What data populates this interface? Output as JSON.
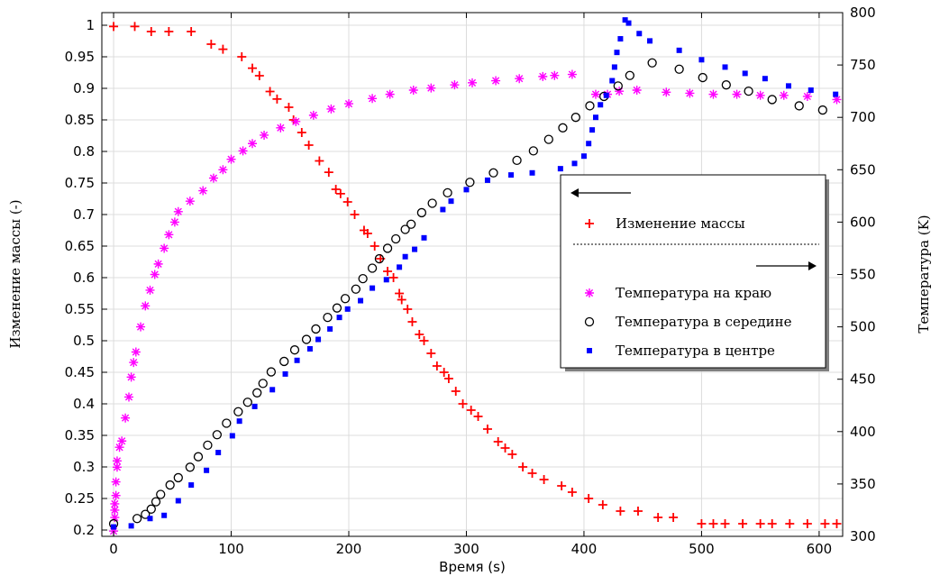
{
  "chart_data": {
    "type": "scatter",
    "xlabel": "Время (s)",
    "ylabel_left": "Изменение массы (-)",
    "ylabel_right": "Температура (K)",
    "xlim": [
      -10,
      620
    ],
    "ylim_left": [
      0.19,
      1.02
    ],
    "ylim_right": [
      300,
      800
    ],
    "x_ticks": [
      0,
      100,
      200,
      300,
      400,
      500,
      600
    ],
    "y_left_ticks": [
      "1",
      "0.95",
      "0.9",
      "0.85",
      "0.8",
      "0.75",
      "0.7",
      "0.65",
      "0.6",
      "0.55",
      "0.5",
      "0.45",
      "0.4",
      "0.35",
      "0.3",
      "0.25",
      "0.2"
    ],
    "y_right_ticks": [
      "800",
      "750",
      "700",
      "650",
      "600",
      "550",
      "500",
      "450",
      "400",
      "350",
      "300"
    ],
    "grid": true,
    "legend": {
      "placement": "right",
      "left_axis_items": [
        "Изменение массы"
      ],
      "right_axis_items": [
        "Температура на краю",
        "Температура в середине",
        "Температура в центре"
      ]
    },
    "series": [
      {
        "name": "Изменение массы",
        "axis": "left",
        "color": "#ff0000",
        "marker": "plus",
        "points": [
          [
            0,
            0.998
          ],
          [
            18,
            0.998
          ],
          [
            32,
            0.99
          ],
          [
            47,
            0.99
          ],
          [
            66,
            0.99
          ],
          [
            83,
            0.97
          ],
          [
            93,
            0.962
          ],
          [
            109,
            0.95
          ],
          [
            118,
            0.932
          ],
          [
            124,
            0.92
          ],
          [
            133,
            0.895
          ],
          [
            139,
            0.883
          ],
          [
            149,
            0.87
          ],
          [
            153,
            0.85
          ],
          [
            160,
            0.83
          ],
          [
            166,
            0.81
          ],
          [
            175,
            0.785
          ],
          [
            183,
            0.767
          ],
          [
            189,
            0.74
          ],
          [
            193,
            0.733
          ],
          [
            199,
            0.72
          ],
          [
            205,
            0.7
          ],
          [
            213,
            0.675
          ],
          [
            216,
            0.67
          ],
          [
            222,
            0.65
          ],
          [
            227,
            0.63
          ],
          [
            233,
            0.61
          ],
          [
            238,
            0.6
          ],
          [
            243,
            0.575
          ],
          [
            245,
            0.565
          ],
          [
            250,
            0.55
          ],
          [
            254,
            0.53
          ],
          [
            260,
            0.51
          ],
          [
            264,
            0.5
          ],
          [
            270,
            0.48
          ],
          [
            275,
            0.46
          ],
          [
            281,
            0.45
          ],
          [
            285,
            0.44
          ],
          [
            291,
            0.42
          ],
          [
            297,
            0.4
          ],
          [
            304,
            0.39
          ],
          [
            310,
            0.38
          ],
          [
            318,
            0.36
          ],
          [
            327,
            0.34
          ],
          [
            333,
            0.33
          ],
          [
            339,
            0.32
          ],
          [
            348,
            0.3
          ],
          [
            356,
            0.29
          ],
          [
            366,
            0.28
          ],
          [
            381,
            0.27
          ],
          [
            390,
            0.26
          ],
          [
            404,
            0.25
          ],
          [
            416,
            0.24
          ],
          [
            431,
            0.23
          ],
          [
            446,
            0.23
          ],
          [
            463,
            0.22
          ],
          [
            476,
            0.22
          ],
          [
            500,
            0.21
          ],
          [
            510,
            0.21
          ],
          [
            520,
            0.21
          ],
          [
            535,
            0.21
          ],
          [
            550,
            0.21
          ],
          [
            560,
            0.21
          ],
          [
            575,
            0.21
          ],
          [
            590,
            0.21
          ],
          [
            605,
            0.21
          ],
          [
            615,
            0.21
          ]
        ]
      },
      {
        "name": "Температура на краю",
        "axis": "right",
        "color": "#ff00ff",
        "marker": "asterisk",
        "points": [
          [
            0,
            305
          ],
          [
            1,
            318
          ],
          [
            1,
            325
          ],
          [
            1,
            331
          ],
          [
            2,
            339
          ],
          [
            2,
            352
          ],
          [
            3,
            366
          ],
          [
            3,
            372
          ],
          [
            5,
            385
          ],
          [
            7,
            391
          ],
          [
            10,
            413
          ],
          [
            13,
            433
          ],
          [
            15,
            452
          ],
          [
            17,
            466
          ],
          [
            19,
            476
          ],
          [
            23,
            500
          ],
          [
            27,
            520
          ],
          [
            31,
            535
          ],
          [
            35,
            550
          ],
          [
            38,
            560
          ],
          [
            43,
            575
          ],
          [
            47,
            588
          ],
          [
            52,
            600
          ],
          [
            55,
            610
          ],
          [
            65,
            620
          ],
          [
            76,
            630
          ],
          [
            85,
            642
          ],
          [
            93,
            650
          ],
          [
            100,
            660
          ],
          [
            110,
            668
          ],
          [
            118,
            675
          ],
          [
            128,
            683
          ],
          [
            142,
            690
          ],
          [
            155,
            696
          ],
          [
            170,
            702
          ],
          [
            185,
            708
          ],
          [
            200,
            713
          ],
          [
            220,
            718
          ],
          [
            235,
            722
          ],
          [
            255,
            726
          ],
          [
            270,
            728
          ],
          [
            290,
            731
          ],
          [
            305,
            733
          ],
          [
            325,
            735
          ],
          [
            345,
            737
          ],
          [
            365,
            739
          ],
          [
            375,
            740
          ],
          [
            390,
            741
          ],
          [
            410,
            722
          ],
          [
            420,
            722
          ],
          [
            430,
            725
          ],
          [
            445,
            726
          ],
          [
            470,
            724
          ],
          [
            490,
            723
          ],
          [
            510,
            722
          ],
          [
            530,
            722
          ],
          [
            550,
            721
          ],
          [
            570,
            721
          ],
          [
            590,
            720
          ],
          [
            615,
            717
          ]
        ]
      },
      {
        "name": "Температура в середине",
        "axis": "right",
        "color": "#000000",
        "marker": "circle",
        "points": [
          [
            0,
            312
          ],
          [
            20,
            317
          ],
          [
            27,
            321
          ],
          [
            32,
            326
          ],
          [
            36,
            333
          ],
          [
            40,
            340
          ],
          [
            48,
            349
          ],
          [
            55,
            356
          ],
          [
            65,
            366
          ],
          [
            72,
            376
          ],
          [
            80,
            387
          ],
          [
            88,
            397
          ],
          [
            96,
            408
          ],
          [
            106,
            419
          ],
          [
            114,
            428
          ],
          [
            122,
            437
          ],
          [
            127,
            446
          ],
          [
            134,
            457
          ],
          [
            145,
            467
          ],
          [
            154,
            478
          ],
          [
            164,
            488
          ],
          [
            172,
            498
          ],
          [
            182,
            509
          ],
          [
            190,
            518
          ],
          [
            197,
            527
          ],
          [
            206,
            536
          ],
          [
            212,
            546
          ],
          [
            220,
            556
          ],
          [
            226,
            565
          ],
          [
            233,
            575
          ],
          [
            240,
            584
          ],
          [
            248,
            593
          ],
          [
            253,
            598
          ],
          [
            262,
            609
          ],
          [
            271,
            618
          ],
          [
            284,
            628
          ],
          [
            303,
            638
          ],
          [
            323,
            647
          ],
          [
            343,
            659
          ],
          [
            357,
            668
          ],
          [
            370,
            679
          ],
          [
            382,
            690
          ],
          [
            393,
            700
          ],
          [
            405,
            711
          ],
          [
            417,
            720
          ],
          [
            429,
            730
          ],
          [
            439,
            740
          ],
          [
            458,
            752
          ],
          [
            481,
            746
          ],
          [
            501,
            738
          ],
          [
            521,
            731
          ],
          [
            540,
            725
          ],
          [
            560,
            717
          ],
          [
            583,
            711
          ],
          [
            603,
            707
          ]
        ]
      },
      {
        "name": "Температура в центре",
        "axis": "right",
        "color": "#0000ff",
        "marker": "square",
        "points": [
          [
            0,
            309
          ],
          [
            15,
            310
          ],
          [
            31,
            317
          ],
          [
            43,
            320
          ],
          [
            55,
            334
          ],
          [
            66,
            349
          ],
          [
            79,
            363
          ],
          [
            89,
            380
          ],
          [
            101,
            396
          ],
          [
            107,
            410
          ],
          [
            120,
            424
          ],
          [
            135,
            440
          ],
          [
            146,
            455
          ],
          [
            156,
            468
          ],
          [
            167,
            479
          ],
          [
            174,
            488
          ],
          [
            184,
            498
          ],
          [
            192,
            509
          ],
          [
            199,
            517
          ],
          [
            210,
            525
          ],
          [
            220,
            537
          ],
          [
            232,
            545
          ],
          [
            243,
            557
          ],
          [
            248,
            567
          ],
          [
            256,
            574
          ],
          [
            264,
            585
          ],
          [
            280,
            612
          ],
          [
            287,
            620
          ],
          [
            300,
            631
          ],
          [
            318,
            640
          ],
          [
            338,
            645
          ],
          [
            356,
            647
          ],
          [
            380,
            651
          ],
          [
            392,
            656
          ],
          [
            400,
            663
          ],
          [
            404,
            675
          ],
          [
            407,
            688
          ],
          [
            410,
            700
          ],
          [
            414,
            712
          ],
          [
            419,
            721
          ],
          [
            424,
            735
          ],
          [
            426,
            748
          ],
          [
            428,
            762
          ],
          [
            431,
            775
          ],
          [
            435,
            793
          ],
          [
            438,
            790
          ],
          [
            447,
            780
          ],
          [
            456,
            773
          ],
          [
            481,
            764
          ],
          [
            500,
            755
          ],
          [
            520,
            748
          ],
          [
            537,
            742
          ],
          [
            554,
            737
          ],
          [
            574,
            730
          ],
          [
            593,
            726
          ],
          [
            614,
            722
          ]
        ]
      }
    ]
  }
}
